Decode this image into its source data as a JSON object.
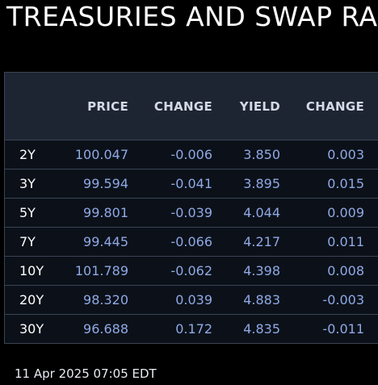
{
  "title": "TREASURIES AND SWAP RA",
  "columns": [
    "",
    "PRICE",
    "CHANGE",
    "YIELD",
    "CHANGE"
  ],
  "rows": [
    {
      "tenor": "2Y",
      "price": "100.047",
      "price_change": "-0.006",
      "yield": "3.850",
      "yield_change": "0.003"
    },
    {
      "tenor": "3Y",
      "price": "99.594",
      "price_change": "-0.041",
      "yield": "3.895",
      "yield_change": "0.015"
    },
    {
      "tenor": "5Y",
      "price": "99.801",
      "price_change": "-0.039",
      "yield": "4.044",
      "yield_change": "0.009"
    },
    {
      "tenor": "7Y",
      "price": "99.445",
      "price_change": "-0.066",
      "yield": "4.217",
      "yield_change": "0.011"
    },
    {
      "tenor": "10Y",
      "price": "101.789",
      "price_change": "-0.062",
      "yield": "4.398",
      "yield_change": "0.008"
    },
    {
      "tenor": "20Y",
      "price": "98.320",
      "price_change": "0.039",
      "yield": "4.883",
      "yield_change": "-0.003"
    },
    {
      "tenor": "30Y",
      "price": "96.688",
      "price_change": "0.172",
      "yield": "4.835",
      "yield_change": "-0.011"
    }
  ],
  "timestamp": "11 Apr 2025 07:05 EDT",
  "colors": {
    "background": "#000000",
    "header_bg": "#1d2533",
    "row_bg": "#0c1119",
    "value_text": "#8fa9e6",
    "border": "#3a4455"
  }
}
